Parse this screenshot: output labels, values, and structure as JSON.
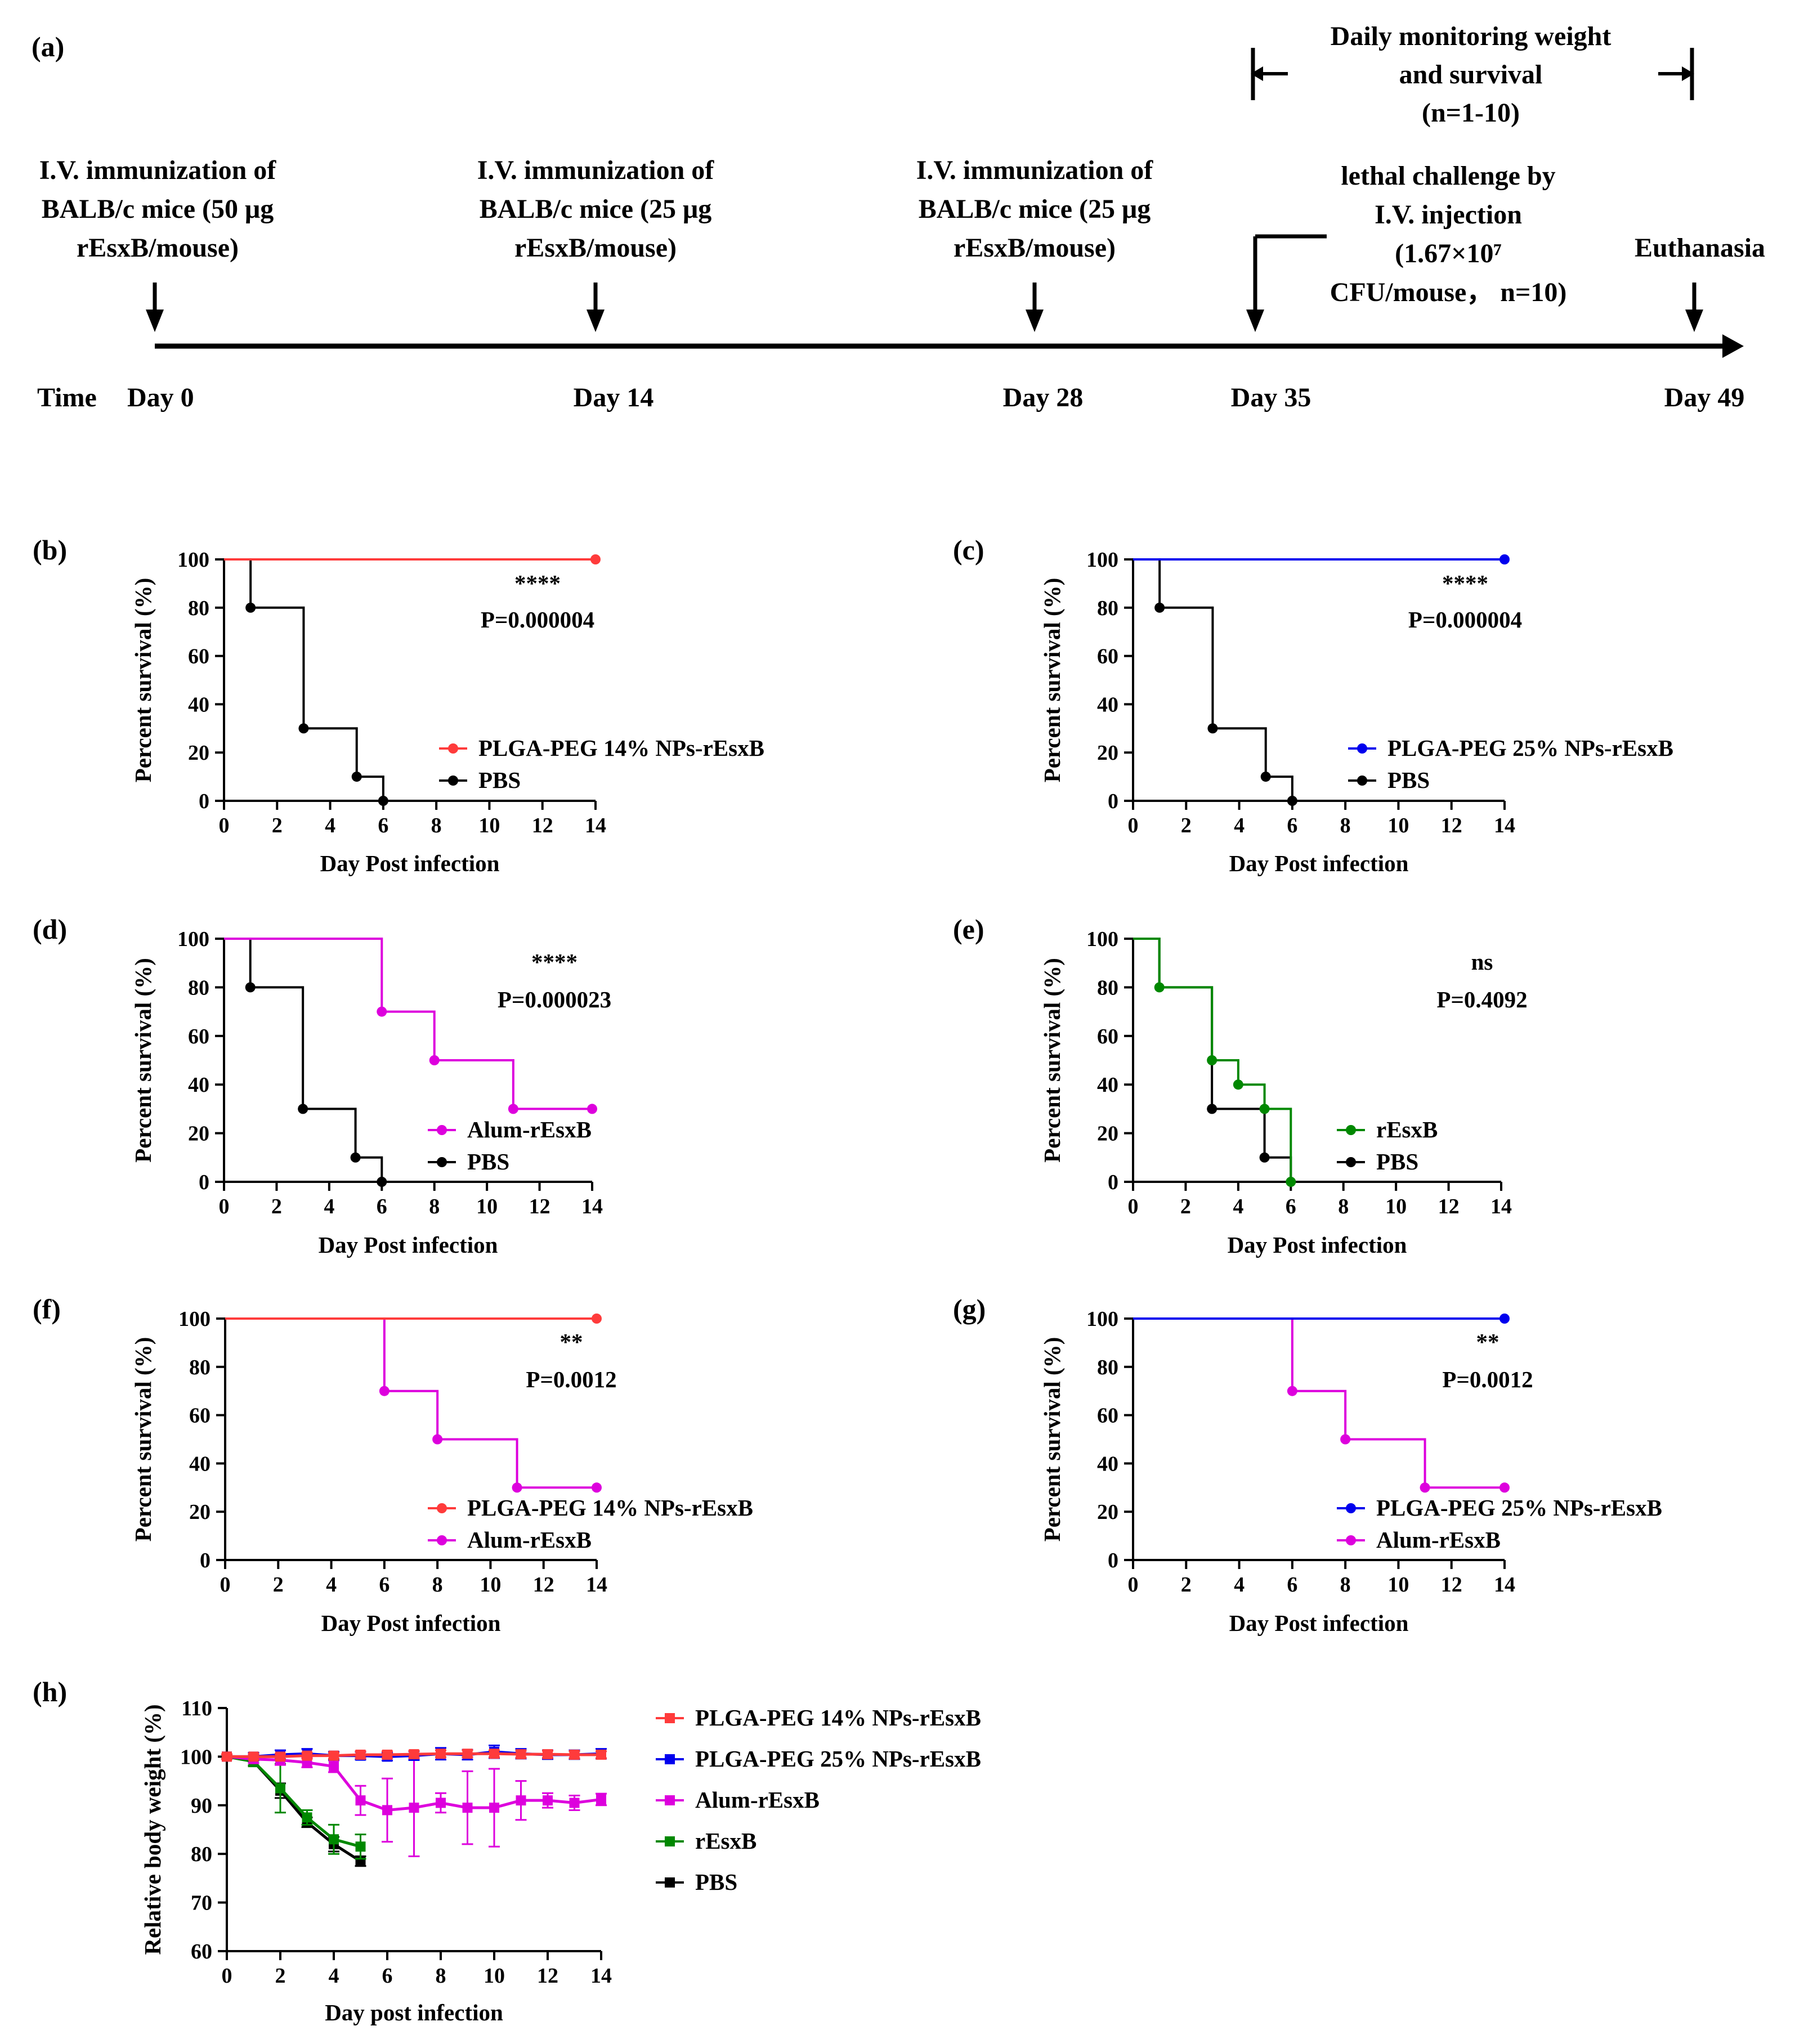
{
  "colors": {
    "plga14": "#ff3b3b",
    "plga25": "#0000ee",
    "alum": "#dd00dd",
    "resxb": "#008800",
    "pbs": "#000000"
  },
  "timeline": {
    "panel_label": "(a)",
    "time_label": "Time",
    "days": [
      {
        "label": "Day 0",
        "value": 0
      },
      {
        "label": "Day 14",
        "value": 14
      },
      {
        "label": "Day 28",
        "value": 28
      },
      {
        "label": "Day 35",
        "value": 35
      },
      {
        "label": "Day 49",
        "value": 49
      }
    ],
    "immunizations": [
      [
        "I.V. immunization of",
        "BALB/c mice (50 μg",
        "rEsxB/mouse)"
      ],
      [
        "I.V. immunization of",
        "BALB/c mice (25 μg",
        "rEsxB/mouse)"
      ],
      [
        "I.V. immunization of",
        "BALB/c mice (25 μg",
        "rEsxB/mouse)"
      ]
    ],
    "challenge": [
      "lethal challenge by",
      "I.V. injection",
      "(1.67×10⁷",
      "CFU/mouse， n=10)"
    ],
    "monitoring": [
      "Daily monitoring weight",
      "and survival",
      "(n=1-10)"
    ],
    "euthanasia": "Euthanasia"
  },
  "chart_data": [
    {
      "id": "b",
      "panel_label": "(b)",
      "type": "line",
      "xlabel": "Day Post infection",
      "ylabel": "Percent survival (%)",
      "xlim": [
        0,
        14
      ],
      "ylim": [
        0,
        100
      ],
      "xticks": [
        0,
        2,
        4,
        6,
        8,
        10,
        12,
        14
      ],
      "yticks": [
        0,
        20,
        40,
        60,
        80,
        100
      ],
      "sig": "****",
      "pvalue": "P=0.000004",
      "series": [
        {
          "name": "PLGA-PEG 14% NPs-rEsxB",
          "color": "#ff3b3b",
          "steps": [
            [
              0,
              100
            ],
            [
              14,
              100
            ]
          ],
          "markers": [
            [
              14,
              100
            ]
          ]
        },
        {
          "name": "PBS",
          "color": "#000000",
          "steps": [
            [
              0,
              100
            ],
            [
              1,
              80
            ],
            [
              3,
              30
            ],
            [
              5,
              10
            ],
            [
              6,
              0
            ]
          ],
          "markers": [
            [
              1,
              80
            ],
            [
              3,
              30
            ],
            [
              5,
              10
            ],
            [
              6,
              0
            ]
          ]
        }
      ]
    },
    {
      "id": "c",
      "panel_label": "(c)",
      "type": "line",
      "xlabel": "Day Post infection",
      "ylabel": "Percent survival (%)",
      "xlim": [
        0,
        14
      ],
      "ylim": [
        0,
        100
      ],
      "xticks": [
        0,
        2,
        4,
        6,
        8,
        10,
        12,
        14
      ],
      "yticks": [
        0,
        20,
        40,
        60,
        80,
        100
      ],
      "sig": "****",
      "pvalue": "P=0.000004",
      "series": [
        {
          "name": "PLGA-PEG 25% NPs-rEsxB",
          "color": "#0000ee",
          "steps": [
            [
              0,
              100
            ],
            [
              14,
              100
            ]
          ],
          "markers": [
            [
              14,
              100
            ]
          ]
        },
        {
          "name": "PBS",
          "color": "#000000",
          "steps": [
            [
              0,
              100
            ],
            [
              1,
              80
            ],
            [
              3,
              30
            ],
            [
              5,
              10
            ],
            [
              6,
              0
            ]
          ],
          "markers": [
            [
              1,
              80
            ],
            [
              3,
              30
            ],
            [
              5,
              10
            ],
            [
              6,
              0
            ]
          ]
        }
      ]
    },
    {
      "id": "d",
      "panel_label": "(d)",
      "type": "line",
      "xlabel": "Day Post infection",
      "ylabel": "Percent survival (%)",
      "xlim": [
        0,
        14
      ],
      "ylim": [
        0,
        100
      ],
      "xticks": [
        0,
        2,
        4,
        6,
        8,
        10,
        12,
        14
      ],
      "yticks": [
        0,
        20,
        40,
        60,
        80,
        100
      ],
      "sig": "****",
      "pvalue": "P=0.000023",
      "series": [
        {
          "name": "Alum-rEsxB",
          "color": "#dd00dd",
          "steps": [
            [
              0,
              100
            ],
            [
              6,
              70
            ],
            [
              8,
              50
            ],
            [
              11,
              30
            ],
            [
              14,
              30
            ]
          ],
          "markers": [
            [
              6,
              70
            ],
            [
              8,
              50
            ],
            [
              11,
              30
            ],
            [
              14,
              30
            ]
          ]
        },
        {
          "name": "PBS",
          "color": "#000000",
          "steps": [
            [
              0,
              100
            ],
            [
              1,
              80
            ],
            [
              3,
              30
            ],
            [
              5,
              10
            ],
            [
              6,
              0
            ]
          ],
          "markers": [
            [
              1,
              80
            ],
            [
              3,
              30
            ],
            [
              5,
              10
            ],
            [
              6,
              0
            ]
          ]
        }
      ]
    },
    {
      "id": "e",
      "panel_label": "(e)",
      "type": "line",
      "xlabel": "Day Post infection",
      "ylabel": "Percent survival (%)",
      "xlim": [
        0,
        14
      ],
      "ylim": [
        0,
        100
      ],
      "xticks": [
        0,
        2,
        4,
        6,
        8,
        10,
        12,
        14
      ],
      "yticks": [
        0,
        20,
        40,
        60,
        80,
        100
      ],
      "sig": "ns",
      "pvalue": "P=0.4092",
      "series": [
        {
          "name": "rEsxB",
          "color": "#008800",
          "steps": [
            [
              0,
              100
            ],
            [
              1,
              80
            ],
            [
              3,
              50
            ],
            [
              4,
              40
            ],
            [
              5,
              30
            ],
            [
              6,
              0
            ]
          ],
          "markers": [
            [
              1,
              80
            ],
            [
              3,
              50
            ],
            [
              4,
              40
            ],
            [
              5,
              30
            ],
            [
              6,
              0
            ]
          ]
        },
        {
          "name": "PBS",
          "color": "#000000",
          "steps": [
            [
              0,
              100
            ],
            [
              1,
              80
            ],
            [
              3,
              30
            ],
            [
              5,
              10
            ],
            [
              6,
              0
            ]
          ],
          "markers": [
            [
              3,
              30
            ],
            [
              5,
              10
            ]
          ]
        }
      ]
    },
    {
      "id": "f",
      "panel_label": "(f)",
      "type": "line",
      "xlabel": "Day Post infection",
      "ylabel": "Percent survival (%)",
      "xlim": [
        0,
        14
      ],
      "ylim": [
        0,
        100
      ],
      "xticks": [
        0,
        2,
        4,
        6,
        8,
        10,
        12,
        14
      ],
      "yticks": [
        0,
        20,
        40,
        60,
        80,
        100
      ],
      "sig": "**",
      "pvalue": "P=0.0012",
      "series": [
        {
          "name": "PLGA-PEG 14% NPs-rEsxB",
          "color": "#ff3b3b",
          "steps": [
            [
              0,
              100
            ],
            [
              14,
              100
            ]
          ],
          "markers": [
            [
              14,
              100
            ]
          ]
        },
        {
          "name": "Alum-rEsxB",
          "color": "#dd00dd",
          "steps": [
            [
              0,
              100
            ],
            [
              6,
              70
            ],
            [
              8,
              50
            ],
            [
              11,
              30
            ],
            [
              14,
              30
            ]
          ],
          "markers": [
            [
              6,
              70
            ],
            [
              8,
              50
            ],
            [
              11,
              30
            ],
            [
              14,
              30
            ]
          ]
        }
      ]
    },
    {
      "id": "g",
      "panel_label": "(g)",
      "type": "line",
      "xlabel": "Day Post infection",
      "ylabel": "Percent survival (%)",
      "xlim": [
        0,
        14
      ],
      "ylim": [
        0,
        100
      ],
      "xticks": [
        0,
        2,
        4,
        6,
        8,
        10,
        12,
        14
      ],
      "yticks": [
        0,
        20,
        40,
        60,
        80,
        100
      ],
      "sig": "**",
      "pvalue": "P=0.0012",
      "series": [
        {
          "name": "PLGA-PEG 25% NPs-rEsxB",
          "color": "#0000ee",
          "steps": [
            [
              0,
              100
            ],
            [
              14,
              100
            ]
          ],
          "markers": [
            [
              14,
              100
            ]
          ]
        },
        {
          "name": "Alum-rEsxB",
          "color": "#dd00dd",
          "steps": [
            [
              0,
              100
            ],
            [
              6,
              70
            ],
            [
              8,
              50
            ],
            [
              11,
              30
            ],
            [
              14,
              30
            ]
          ],
          "markers": [
            [
              6,
              70
            ],
            [
              8,
              50
            ],
            [
              11,
              30
            ],
            [
              14,
              30
            ]
          ]
        }
      ]
    },
    {
      "id": "h",
      "panel_label": "(h)",
      "type": "line",
      "xlabel": "Day post infection",
      "ylabel": "Relative body weight (%)",
      "xlim": [
        0,
        14
      ],
      "ylim": [
        60,
        110
      ],
      "xticks": [
        0,
        2,
        4,
        6,
        8,
        10,
        12,
        14
      ],
      "yticks": [
        60,
        70,
        80,
        90,
        100,
        110
      ],
      "series": [
        {
          "name": "PLGA-PEG 14% NPs-rEsxB",
          "color": "#ff3b3b",
          "x": [
            0,
            1,
            2,
            3,
            4,
            5,
            6,
            7,
            8,
            9,
            10,
            11,
            12,
            13,
            14
          ],
          "y": [
            100,
            100,
            100,
            100.2,
            100.2,
            100.4,
            100.4,
            100.5,
            100.6,
            100.6,
            100.6,
            100.5,
            100.5,
            100.4,
            100.4
          ],
          "err": [
            0.5,
            0.6,
            0.6,
            0.6,
            0.6,
            0.7,
            0.7,
            0.7,
            0.7,
            0.7,
            0.7,
            0.7,
            0.7,
            0.7,
            0.7
          ]
        },
        {
          "name": "PLGA-PEG 25% NPs-rEsxB",
          "color": "#0000ee",
          "x": [
            0,
            1,
            2,
            3,
            4,
            5,
            6,
            7,
            8,
            9,
            10,
            11,
            12,
            13,
            14
          ],
          "y": [
            100,
            100,
            100.4,
            100.6,
            100.2,
            100.2,
            100,
            100.2,
            100.6,
            100.4,
            101,
            100.6,
            100.4,
            100.4,
            100.6
          ],
          "err": [
            0.5,
            0.8,
            0.9,
            1,
            0.8,
            0.8,
            0.8,
            0.9,
            1.2,
            1,
            1.3,
            1,
            0.9,
            0.9,
            1
          ]
        },
        {
          "name": "Alum-rEsxB",
          "color": "#dd00dd",
          "x": [
            0,
            1,
            2,
            3,
            4,
            5,
            6,
            7,
            8,
            9,
            10,
            11,
            12,
            13,
            14
          ],
          "y": [
            100,
            99.5,
            99.3,
            98.8,
            98,
            91,
            89,
            89.5,
            90.5,
            89.5,
            89.5,
            91,
            91,
            90.5,
            91.2
          ],
          "err": [
            0.5,
            0.8,
            1,
            1,
            1.2,
            3,
            6.5,
            10,
            2,
            7.5,
            8,
            4,
            1.5,
            1.5,
            1.2
          ]
        },
        {
          "name": "rEsxB",
          "color": "#008800",
          "x": [
            0,
            1,
            2,
            3,
            4,
            5
          ],
          "y": [
            100,
            99,
            93.5,
            87.5,
            83,
            81.5
          ],
          "err": [
            0.5,
            1,
            5,
            1.5,
            3,
            2.5
          ]
        },
        {
          "name": "PBS",
          "color": "#000000",
          "x": [
            0,
            1,
            2,
            3,
            4,
            5
          ],
          "y": [
            100,
            99,
            93,
            86.5,
            82,
            78.5
          ],
          "err": [
            0.5,
            0.8,
            1.5,
            1,
            1.5,
            1
          ]
        }
      ]
    }
  ]
}
